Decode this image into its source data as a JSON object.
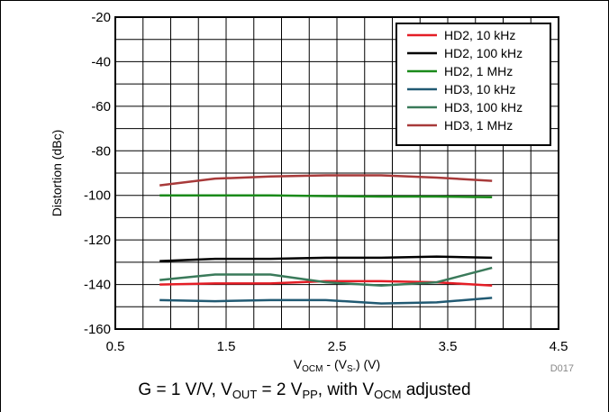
{
  "chart_data": {
    "type": "line",
    "title": "",
    "xlabel": {
      "main": "V",
      "sub1": "OCM",
      "mid": " - (V",
      "sub2": "S-",
      "end": ") (V)"
    },
    "ylabel": "Distortion (dBc)",
    "xlim": [
      0.5,
      4.5
    ],
    "ylim": [
      -160,
      -20
    ],
    "x_ticks": [
      "0.5",
      "1.5",
      "2.5",
      "3.5",
      "4.5"
    ],
    "y_ticks": [
      "-20",
      "-40",
      "-60",
      "-80",
      "-100",
      "-120",
      "-140",
      "-160"
    ],
    "grid": true,
    "legend_position": "top-right",
    "figure_id": "D017",
    "x": [
      0.9,
      1.4,
      1.9,
      2.4,
      2.9,
      3.4,
      3.9
    ],
    "series": [
      {
        "name": "HD2, 10 kHz",
        "color": "#e41e26",
        "values": [
          -140,
          -139.5,
          -139.5,
          -138.5,
          -138.5,
          -139,
          -140.5
        ]
      },
      {
        "name": "HD2, 100 kHz",
        "color": "#000000",
        "values": [
          -129.5,
          -128.5,
          -128.5,
          -128,
          -128,
          -127.5,
          -128
        ]
      },
      {
        "name": "HD2, 1 MHz",
        "color": "#1a8a1a",
        "values": [
          -100,
          -100,
          -100,
          -100.3,
          -100.5,
          -100.5,
          -100.8
        ]
      },
      {
        "name": "HD3, 10 kHz",
        "color": "#215a73",
        "values": [
          -147,
          -147.5,
          -147,
          -147,
          -148.5,
          -148,
          -146
        ]
      },
      {
        "name": "HD3, 100 kHz",
        "color": "#3a7a5a",
        "values": [
          -138,
          -135.5,
          -135.5,
          -139,
          -140.5,
          -139,
          -132.5
        ]
      },
      {
        "name": "HD3, 1 MHz",
        "color": "#a83a3a",
        "values": [
          -95.5,
          -92.5,
          -91.5,
          -91,
          -91,
          -92,
          -93.5
        ]
      }
    ]
  },
  "caption": {
    "part1": "G = 1 V/V, V",
    "sub1": "OUT",
    "part2": " = 2 V",
    "sub2": "PP",
    "part3": ", with V",
    "sub3": "OCM",
    "part4": " adjusted"
  }
}
